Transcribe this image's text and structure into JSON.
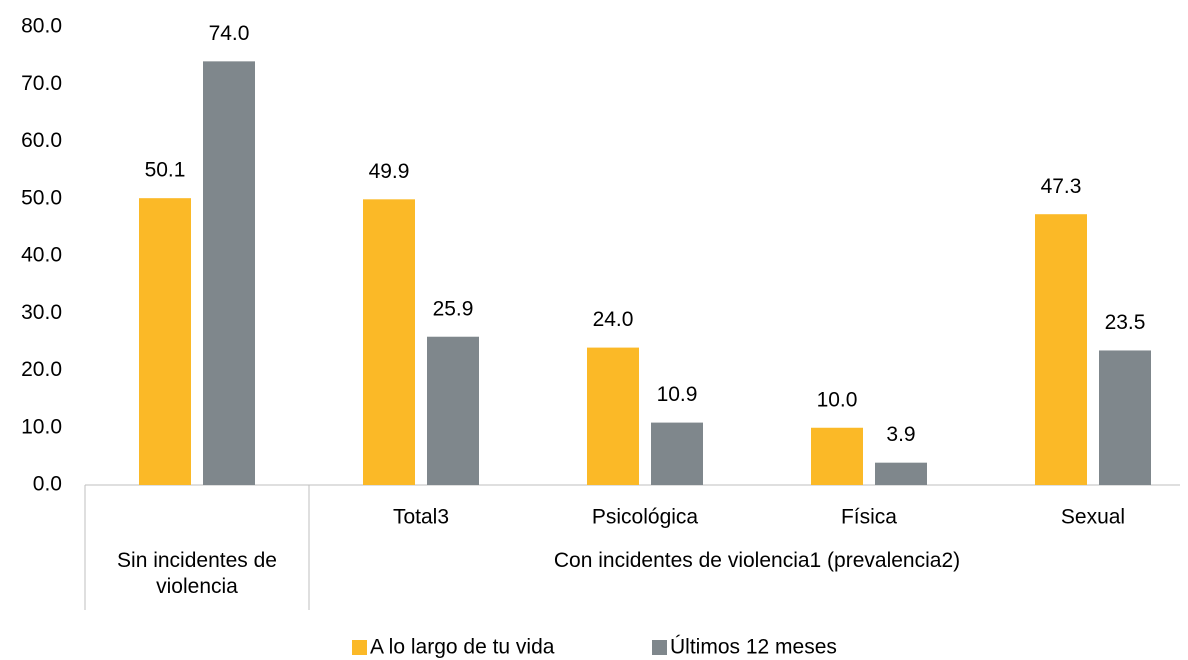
{
  "chart_data": {
    "type": "bar",
    "categories": [
      null,
      "Total3",
      "Psicológica",
      "Física",
      "Sexual"
    ],
    "group_labels": [
      "Sin incidentes de violencia",
      "Con incidentes de violencia1 (prevalencia2)"
    ],
    "group_sizes": [
      1,
      4
    ],
    "series": [
      {
        "name": "A lo largo de tu vida",
        "color": "#fbb927",
        "values": [
          50.1,
          49.9,
          24.0,
          10.0,
          47.3
        ],
        "value_labels": [
          "50.1",
          "49.9",
          "24.0",
          "10.0",
          "47.3"
        ]
      },
      {
        "name": "Últimos 12 meses",
        "color": "#7f878c",
        "values": [
          74.0,
          25.9,
          10.9,
          3.9,
          23.5
        ],
        "value_labels": [
          "74.0",
          "25.9",
          "10.9",
          "3.9",
          "23.5"
        ]
      }
    ],
    "ylim": [
      0,
      80
    ],
    "yticks": [
      {
        "value": 0,
        "label": "0.0"
      },
      {
        "value": 10,
        "label": "10.0"
      },
      {
        "value": 20,
        "label": "20.0"
      },
      {
        "value": 30,
        "label": "30.0"
      },
      {
        "value": 40,
        "label": "40.0"
      },
      {
        "value": 50,
        "label": "50.0"
      },
      {
        "value": 60,
        "label": "60.0"
      },
      {
        "value": 70,
        "label": "70.0"
      },
      {
        "value": 80,
        "label": "80.0"
      }
    ],
    "grid": false,
    "legend": "bottom"
  }
}
